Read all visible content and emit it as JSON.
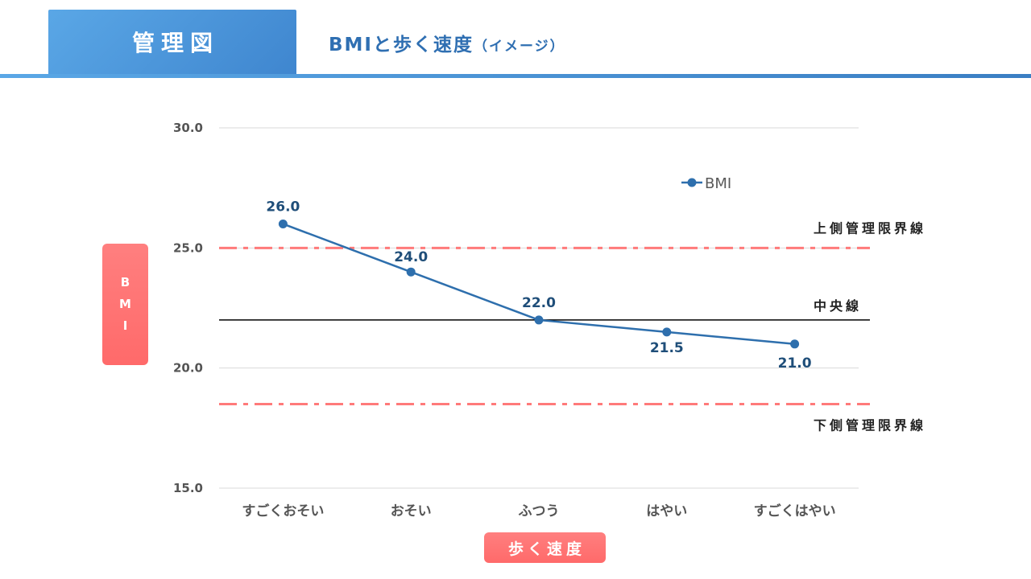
{
  "header": {
    "tab_label": "管理図",
    "title": "BMIと歩く速度",
    "title_sub": "（イメージ）"
  },
  "axis_labels": {
    "y_chars": [
      "B",
      "M",
      "I"
    ],
    "x": "歩く速度"
  },
  "colors": {
    "header_blue": "#4a90d9",
    "title_blue": "#2f6fb2",
    "series": "#2e6fad",
    "limit_line": "#ff7a7a",
    "center_line": "#000000",
    "label_box": "#ff7070"
  },
  "chart_data": {
    "type": "line",
    "categories": [
      "すごくおそい",
      "おそい",
      "ふつう",
      "はやい",
      "すごくはやい"
    ],
    "series": [
      {
        "name": "BMI",
        "values": [
          26.0,
          24.0,
          22.0,
          21.5,
          21.0
        ],
        "data_labels": [
          "26.0",
          "24.0",
          "22.0",
          "21.5",
          "21.0"
        ]
      }
    ],
    "ylim": [
      15.0,
      30.0
    ],
    "yticks": [
      15.0,
      20.0,
      25.0,
      30.0
    ],
    "ytick_labels": [
      "15.0",
      "20.0",
      "25.0",
      "30.0"
    ],
    "grid": true,
    "legend": "upper-right",
    "xlabel": "歩く速度",
    "ylabel": "BMI",
    "reference_lines": [
      {
        "label": "上側管理限界線",
        "value": 25.0,
        "style": "dash-dot",
        "color": "#ff7a7a"
      },
      {
        "label": "中央線",
        "value": 22.0,
        "style": "solid",
        "color": "#000000"
      },
      {
        "label": "下側管理限界線",
        "value": 18.5,
        "style": "dash-dot",
        "color": "#ff7a7a"
      }
    ]
  }
}
